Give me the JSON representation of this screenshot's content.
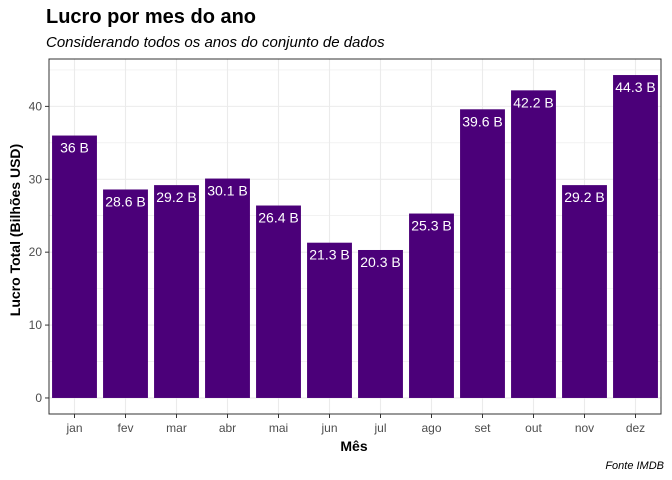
{
  "chart_data": {
    "type": "bar",
    "title": "Lucro por mes do ano",
    "subtitle": "Considerando todos os anos do conjunto de dados",
    "xlabel": "Mês",
    "ylabel": "Lucro Total (Bilhões USD)",
    "caption": "Fonte IMDB",
    "categories": [
      "jan",
      "fev",
      "mar",
      "abr",
      "mai",
      "jun",
      "jul",
      "ago",
      "set",
      "out",
      "nov",
      "dez"
    ],
    "values": [
      36,
      28.6,
      29.2,
      30.1,
      26.4,
      21.3,
      20.3,
      25.3,
      39.6,
      42.2,
      29.2,
      44.3
    ],
    "labels": [
      "36 B",
      "28.6 B",
      "29.2 B",
      "30.1 B",
      "26.4 B",
      "21.3 B",
      "20.3 B",
      "25.3 B",
      "39.6 B",
      "42.2 B",
      "29.2 B",
      "44.3 B"
    ],
    "yticks": [
      0,
      10,
      20,
      30,
      40
    ],
    "ylim": [
      -2.2,
      46.5
    ],
    "grid": true,
    "colors": {
      "bar": "#4b0079",
      "grid": "#ebebeb",
      "panel_border": "#333333"
    }
  }
}
